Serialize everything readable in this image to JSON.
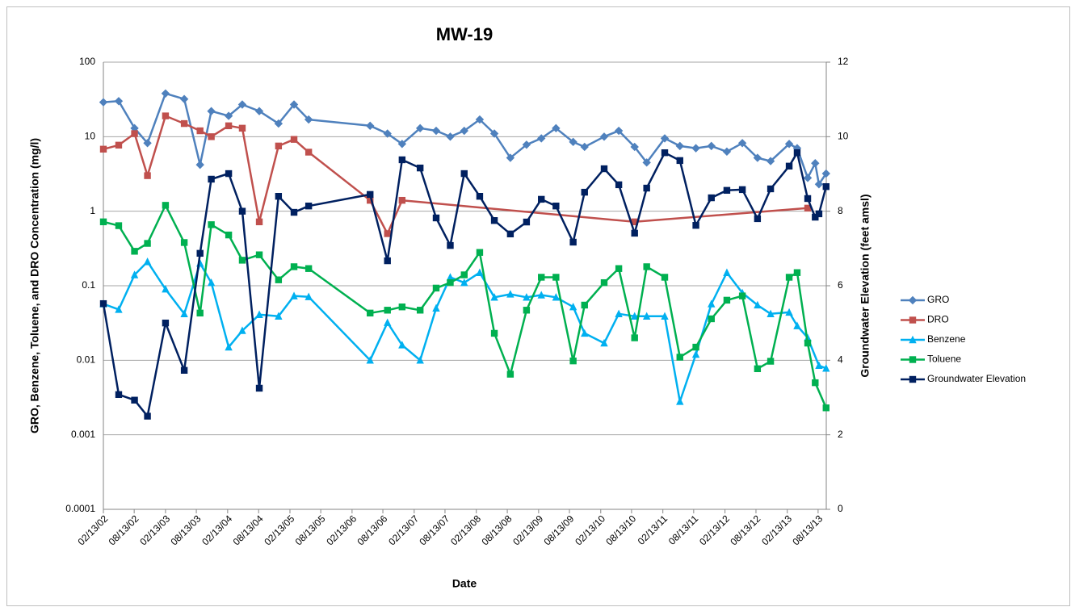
{
  "chart_data": {
    "type": "line",
    "title": "MW-19",
    "x_label": "Date",
    "y_label": "GRO, Benzene, Toluene, and DRO Concentration (mg/l)",
    "y2_label": "Groundwater Elevation (feet amsl)",
    "log_y": true,
    "grid": true,
    "legend": "right",
    "xlim": [
      "2002-02-13",
      "2013-09-30"
    ],
    "xticks": [
      {
        "value": "2002-02-13",
        "label": "02/13/02"
      },
      {
        "value": "2002-08-13",
        "label": "08/13/02"
      },
      {
        "value": "2003-02-13",
        "label": "02/13/03"
      },
      {
        "value": "2003-08-13",
        "label": "08/13/03"
      },
      {
        "value": "2004-02-13",
        "label": "02/13/04"
      },
      {
        "value": "2004-08-13",
        "label": "08/13/04"
      },
      {
        "value": "2005-02-13",
        "label": "02/13/05"
      },
      {
        "value": "2005-08-13",
        "label": "08/13/05"
      },
      {
        "value": "2006-02-13",
        "label": "02/13/06"
      },
      {
        "value": "2006-08-13",
        "label": "08/13/06"
      },
      {
        "value": "2007-02-13",
        "label": "02/13/07"
      },
      {
        "value": "2007-08-13",
        "label": "08/13/07"
      },
      {
        "value": "2008-02-13",
        "label": "02/13/08"
      },
      {
        "value": "2008-08-13",
        "label": "08/13/08"
      },
      {
        "value": "2009-02-13",
        "label": "02/13/09"
      },
      {
        "value": "2009-08-13",
        "label": "08/13/09"
      },
      {
        "value": "2010-02-13",
        "label": "02/13/10"
      },
      {
        "value": "2010-08-13",
        "label": "08/13/10"
      },
      {
        "value": "2011-02-13",
        "label": "02/13/11"
      },
      {
        "value": "2011-08-13",
        "label": "08/13/11"
      },
      {
        "value": "2012-02-13",
        "label": "02/13/12"
      },
      {
        "value": "2012-08-13",
        "label": "08/13/12"
      },
      {
        "value": "2013-02-13",
        "label": "02/13/13"
      },
      {
        "value": "2013-08-13",
        "label": "08/13/13"
      }
    ],
    "ylim": [
      0.0001,
      100
    ],
    "yticks": [
      0.0001,
      0.001,
      0.01,
      0.1,
      1,
      10,
      100
    ],
    "y2lim": [
      0,
      12
    ],
    "y2ticks": [
      0,
      2,
      4,
      6,
      8,
      10,
      12
    ],
    "series": [
      {
        "name": "GRO",
        "color": "#4f81bd",
        "marker": "diamond",
        "x": [
          "2002-02-13",
          "2002-05-14",
          "2002-08-15",
          "2002-10-30",
          "2003-02-13",
          "2003-06-03",
          "2003-09-04",
          "2003-11-09",
          "2004-02-19",
          "2004-05-09",
          "2004-08-17",
          "2004-12-08",
          "2005-03-09",
          "2005-06-03",
          "2006-05-30",
          "2006-09-09",
          "2006-12-04",
          "2007-03-20",
          "2007-06-22",
          "2007-09-13",
          "2007-12-04",
          "2008-03-04",
          "2008-05-29",
          "2008-08-31",
          "2008-12-04",
          "2009-03-01",
          "2009-05-26",
          "2009-09-04",
          "2009-11-10",
          "2010-03-05",
          "2010-05-30",
          "2010-08-31",
          "2010-11-10",
          "2011-02-24",
          "2011-05-24",
          "2011-08-26",
          "2011-11-25",
          "2012-02-24",
          "2012-05-25",
          "2012-08-22",
          "2012-11-07",
          "2013-02-24",
          "2013-04-12",
          "2013-06-13",
          "2013-07-27",
          "2013-08-18",
          "2013-09-29"
        ],
        "values": [
          29,
          30,
          13,
          8.2,
          38,
          32,
          4.2,
          22,
          19,
          27,
          22,
          15,
          27,
          17,
          14,
          11,
          8,
          13,
          12,
          10,
          12,
          17,
          11,
          5.2,
          7.8,
          9.5,
          13,
          8.5,
          7.3,
          10,
          12,
          7.3,
          4.5,
          9.5,
          7.5,
          7,
          7.5,
          6.3,
          8.2,
          5.2,
          4.7,
          8,
          7,
          2.8,
          4.4,
          2.3,
          3.2
        ]
      },
      {
        "name": "DRO",
        "color": "#c0504d",
        "marker": "square",
        "x": [
          "2002-02-13",
          "2002-05-14",
          "2002-08-15",
          "2002-10-30",
          "2003-02-13",
          "2003-06-03",
          "2003-09-04",
          "2003-11-09",
          "2004-02-19",
          "2004-05-09",
          "2004-08-17",
          "2004-12-08",
          "2005-03-09",
          "2005-06-03",
          "2006-05-30",
          "2006-09-09",
          "2006-12-04",
          "2010-08-31",
          "2013-06-13"
        ],
        "values": [
          6.8,
          7.7,
          11,
          3,
          19,
          15,
          12,
          10,
          14,
          13,
          0.72,
          7.5,
          9.2,
          6.2,
          1.4,
          0.5,
          1.4,
          0.72,
          1.1
        ]
      },
      {
        "name": "Benzene",
        "color": "#00b0f0",
        "marker": "triangle",
        "x": [
          "2002-02-13",
          "2002-05-14",
          "2002-08-15",
          "2002-10-30",
          "2003-02-13",
          "2003-06-03",
          "2003-09-04",
          "2003-11-09",
          "2004-02-19",
          "2004-05-09",
          "2004-08-17",
          "2004-12-08",
          "2005-03-09",
          "2005-06-03",
          "2006-05-30",
          "2006-09-09",
          "2006-12-04",
          "2007-03-20",
          "2007-06-22",
          "2007-09-13",
          "2007-12-04",
          "2008-03-04",
          "2008-05-29",
          "2008-08-31",
          "2008-12-04",
          "2009-03-01",
          "2009-05-26",
          "2009-09-04",
          "2009-11-10",
          "2010-03-05",
          "2010-05-30",
          "2010-08-31",
          "2010-11-10",
          "2011-02-24",
          "2011-05-24",
          "2011-08-26",
          "2011-11-25",
          "2012-02-24",
          "2012-05-25",
          "2012-08-22",
          "2012-11-07",
          "2013-02-24",
          "2013-04-12",
          "2013-06-13",
          "2013-08-18",
          "2013-09-29"
        ],
        "values": [
          0.057,
          0.048,
          0.14,
          0.21,
          0.09,
          0.042,
          0.2,
          0.11,
          0.015,
          0.025,
          0.041,
          0.039,
          0.073,
          0.071,
          0.01,
          0.032,
          0.016,
          0.01,
          0.05,
          0.13,
          0.11,
          0.15,
          0.07,
          0.077,
          0.07,
          0.075,
          0.07,
          0.052,
          0.023,
          0.017,
          0.042,
          0.039,
          0.039,
          0.039,
          0.0028,
          0.012,
          0.057,
          0.15,
          0.08,
          0.055,
          0.042,
          0.044,
          0.029,
          0.02,
          0.0085,
          0.0078
        ]
      },
      {
        "name": "Toluene",
        "color": "#00b050",
        "marker": "square",
        "x": [
          "2002-02-13",
          "2002-05-14",
          "2002-08-15",
          "2002-10-30",
          "2003-02-13",
          "2003-06-03",
          "2003-09-04",
          "2003-11-09",
          "2004-02-19",
          "2004-05-09",
          "2004-08-17",
          "2004-12-08",
          "2005-03-09",
          "2005-06-03",
          "2006-05-30",
          "2006-09-09",
          "2006-12-04",
          "2007-03-20",
          "2007-06-22",
          "2007-09-13",
          "2007-12-04",
          "2008-03-04",
          "2008-05-29",
          "2008-08-31",
          "2008-12-04",
          "2009-03-01",
          "2009-05-26",
          "2009-09-04",
          "2009-11-10",
          "2010-03-05",
          "2010-05-30",
          "2010-08-31",
          "2010-11-10",
          "2011-02-24",
          "2011-05-24",
          "2011-08-26",
          "2011-11-25",
          "2012-02-24",
          "2012-05-25",
          "2012-08-22",
          "2012-11-07",
          "2013-02-24",
          "2013-04-12",
          "2013-06-13",
          "2013-07-27",
          "2013-09-29"
        ],
        "values": [
          0.72,
          0.64,
          0.29,
          0.37,
          1.2,
          0.38,
          0.043,
          0.66,
          0.48,
          0.22,
          0.26,
          0.12,
          0.18,
          0.17,
          0.043,
          0.047,
          0.052,
          0.047,
          0.093,
          0.11,
          0.14,
          0.28,
          0.023,
          0.0065,
          0.047,
          0.13,
          0.13,
          0.0098,
          0.055,
          0.11,
          0.17,
          0.02,
          0.18,
          0.13,
          0.011,
          0.015,
          0.036,
          0.064,
          0.073,
          0.0077,
          0.0097,
          0.13,
          0.15,
          0.017,
          0.005,
          0.0023
        ]
      },
      {
        "name": "Groundwater Elevation",
        "color": "#002060",
        "marker": "square",
        "axis": "y2",
        "x": [
          "2002-02-13",
          "2002-05-14",
          "2002-08-15",
          "2002-10-30",
          "2003-02-13",
          "2003-06-03",
          "2003-09-04",
          "2003-11-09",
          "2004-02-19",
          "2004-05-09",
          "2004-08-17",
          "2004-12-08",
          "2005-03-09",
          "2005-06-03",
          "2006-05-30",
          "2006-09-09",
          "2006-12-04",
          "2007-03-20",
          "2007-06-22",
          "2007-09-13",
          "2007-12-04",
          "2008-03-04",
          "2008-05-29",
          "2008-08-31",
          "2008-12-04",
          "2009-03-01",
          "2009-05-26",
          "2009-09-04",
          "2009-11-10",
          "2010-03-05",
          "2010-05-30",
          "2010-08-31",
          "2010-11-10",
          "2011-02-24",
          "2011-05-24",
          "2011-08-26",
          "2011-11-25",
          "2012-02-24",
          "2012-05-25",
          "2012-08-22",
          "2012-11-07",
          "2013-02-24",
          "2013-04-12",
          "2013-06-13",
          "2013-07-27",
          "2013-08-18",
          "2013-09-29"
        ],
        "values": [
          5.52,
          3.08,
          2.93,
          2.5,
          5.0,
          3.73,
          6.87,
          8.86,
          9.01,
          8.0,
          3.25,
          8.4,
          7.97,
          8.14,
          8.45,
          6.67,
          9.38,
          9.16,
          7.82,
          7.08,
          9.01,
          8.4,
          7.75,
          7.39,
          7.71,
          8.32,
          8.14,
          7.17,
          8.51,
          9.14,
          8.71,
          7.41,
          8.62,
          9.57,
          9.36,
          7.62,
          8.36,
          8.56,
          8.58,
          7.8,
          8.6,
          9.21,
          9.57,
          8.34,
          7.84,
          7.93,
          8.66
        ]
      }
    ]
  }
}
